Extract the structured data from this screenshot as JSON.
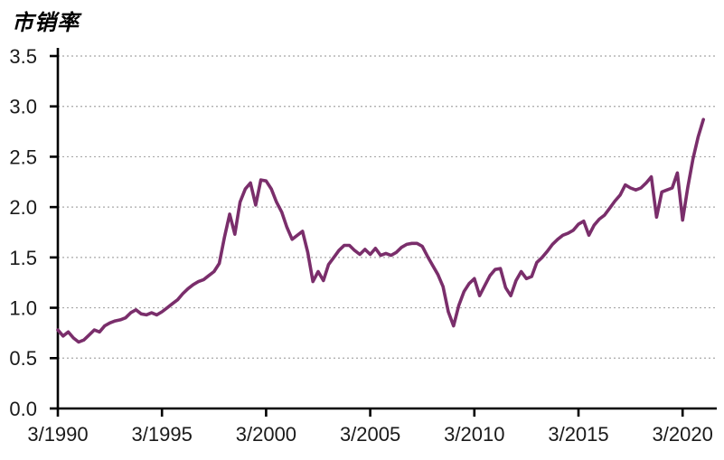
{
  "title": "市销率",
  "colors": {
    "background": "#ffffff",
    "line": "#7A2E6B",
    "axis": "#000000",
    "grid": "#a8a8a8",
    "text": "#1a1a1a"
  },
  "chart_data": {
    "type": "line",
    "title": "市销率",
    "xlabel": "",
    "ylabel": "",
    "legend": "none",
    "grid": "dotted-horizontal",
    "ylim": [
      0,
      3.5
    ],
    "y_ticks": [
      0.0,
      0.5,
      1.0,
      1.5,
      2.0,
      2.5,
      3.0,
      3.5
    ],
    "y_tick_labels": [
      "0.0",
      "0.5",
      "1.0",
      "1.5",
      "2.0",
      "2.5",
      "3.0",
      "3.5"
    ],
    "x_tick_labels": [
      "3/1990",
      "3/1995",
      "3/2000",
      "3/2005",
      "3/2010",
      "3/2015",
      "3/2020"
    ],
    "x_tick_every_n_points": 20,
    "series": [
      {
        "name": "市销率",
        "x": [
          "3/1990",
          "6/1990",
          "9/1990",
          "12/1990",
          "3/1991",
          "6/1991",
          "9/1991",
          "12/1991",
          "3/1992",
          "6/1992",
          "9/1992",
          "12/1992",
          "3/1993",
          "6/1993",
          "9/1993",
          "12/1993",
          "3/1994",
          "6/1994",
          "9/1994",
          "12/1994",
          "3/1995",
          "6/1995",
          "9/1995",
          "12/1995",
          "3/1996",
          "6/1996",
          "9/1996",
          "12/1996",
          "3/1997",
          "6/1997",
          "9/1997",
          "12/1997",
          "3/1998",
          "6/1998",
          "9/1998",
          "12/1998",
          "3/1999",
          "6/1999",
          "9/1999",
          "12/1999",
          "3/2000",
          "6/2000",
          "9/2000",
          "12/2000",
          "3/2001",
          "6/2001",
          "9/2001",
          "12/2001",
          "3/2002",
          "6/2002",
          "9/2002",
          "12/2002",
          "3/2003",
          "6/2003",
          "9/2003",
          "12/2003",
          "3/2004",
          "6/2004",
          "9/2004",
          "12/2004",
          "3/2005",
          "6/2005",
          "9/2005",
          "12/2005",
          "3/2006",
          "6/2006",
          "9/2006",
          "12/2006",
          "3/2007",
          "6/2007",
          "9/2007",
          "12/2007",
          "3/2008",
          "6/2008",
          "9/2008",
          "12/2008",
          "3/2009",
          "6/2009",
          "9/2009",
          "12/2009",
          "3/2010",
          "6/2010",
          "9/2010",
          "12/2010",
          "3/2011",
          "6/2011",
          "9/2011",
          "12/2011",
          "3/2012",
          "6/2012",
          "9/2012",
          "12/2012",
          "3/2013",
          "6/2013",
          "9/2013",
          "12/2013",
          "3/2014",
          "6/2014",
          "9/2014",
          "12/2014",
          "3/2015",
          "6/2015",
          "9/2015",
          "12/2015",
          "3/2016",
          "6/2016",
          "9/2016",
          "12/2016",
          "3/2017",
          "6/2017",
          "9/2017",
          "12/2017",
          "3/2018",
          "6/2018",
          "9/2018",
          "12/2018",
          "3/2019",
          "6/2019",
          "9/2019",
          "12/2019",
          "3/2020",
          "6/2020",
          "9/2020",
          "12/2020",
          "3/2021"
        ],
        "values": [
          0.78,
          0.72,
          0.76,
          0.7,
          0.66,
          0.68,
          0.73,
          0.78,
          0.76,
          0.82,
          0.85,
          0.87,
          0.88,
          0.9,
          0.95,
          0.98,
          0.94,
          0.93,
          0.95,
          0.93,
          0.96,
          1.0,
          1.04,
          1.08,
          1.14,
          1.19,
          1.23,
          1.26,
          1.28,
          1.32,
          1.36,
          1.44,
          1.7,
          1.93,
          1.73,
          2.05,
          2.18,
          2.24,
          2.02,
          2.27,
          2.26,
          2.18,
          2.05,
          1.95,
          1.8,
          1.68,
          1.72,
          1.76,
          1.55,
          1.26,
          1.36,
          1.27,
          1.43,
          1.5,
          1.57,
          1.62,
          1.62,
          1.57,
          1.53,
          1.58,
          1.53,
          1.59,
          1.52,
          1.54,
          1.52,
          1.55,
          1.6,
          1.63,
          1.64,
          1.64,
          1.61,
          1.51,
          1.42,
          1.33,
          1.21,
          0.96,
          0.82,
          1.02,
          1.16,
          1.24,
          1.29,
          1.12,
          1.22,
          1.32,
          1.38,
          1.39,
          1.2,
          1.12,
          1.27,
          1.36,
          1.29,
          1.31,
          1.45,
          1.5,
          1.56,
          1.63,
          1.68,
          1.72,
          1.74,
          1.77,
          1.83,
          1.86,
          1.72,
          1.82,
          1.88,
          1.92,
          1.99,
          2.06,
          2.12,
          2.22,
          2.19,
          2.17,
          2.19,
          2.24,
          2.3,
          1.9,
          2.15,
          2.17,
          2.19,
          2.34,
          1.87,
          2.2,
          2.48,
          2.7,
          2.87
        ]
      }
    ]
  }
}
